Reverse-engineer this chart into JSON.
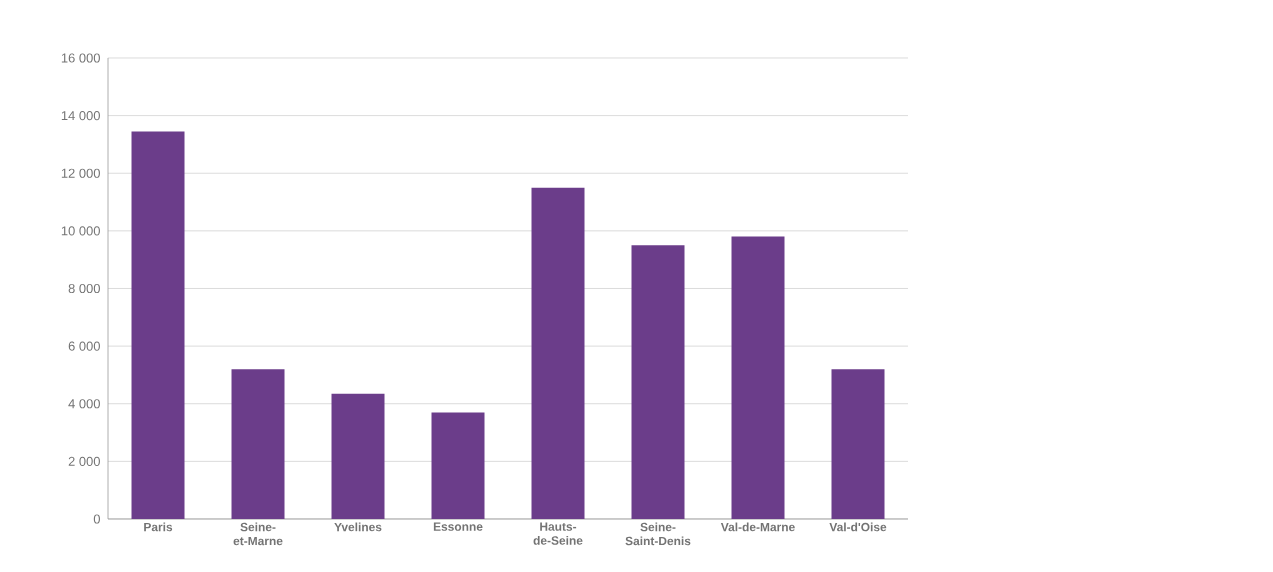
{
  "chart_data": {
    "type": "bar",
    "categories": [
      "Paris",
      "Seine-et-Marne",
      "Yvelines",
      "Essonne",
      "Hauts-de-Seine",
      "Seine-Saint-Denis",
      "Val-de-Marne",
      "Val-d'Oise"
    ],
    "values": [
      13450,
      5200,
      4350,
      3700,
      11500,
      9500,
      9800,
      5200
    ],
    "color": "#6b3d8a",
    "ylim": [
      0,
      16000
    ],
    "yticks": [
      {
        "value": 0,
        "label": "0"
      },
      {
        "value": 2000,
        "label": "2 000"
      },
      {
        "value": 4000,
        "label": "4 000"
      },
      {
        "value": 6000,
        "label": "6 000"
      },
      {
        "value": 8000,
        "label": "8 000"
      },
      {
        "value": 10000,
        "label": "10 000"
      },
      {
        "value": 12000,
        "label": "12 000"
      },
      {
        "value": 14000,
        "label": "14 000"
      },
      {
        "value": 16000,
        "label": "16 000"
      }
    ],
    "grid": "y"
  }
}
